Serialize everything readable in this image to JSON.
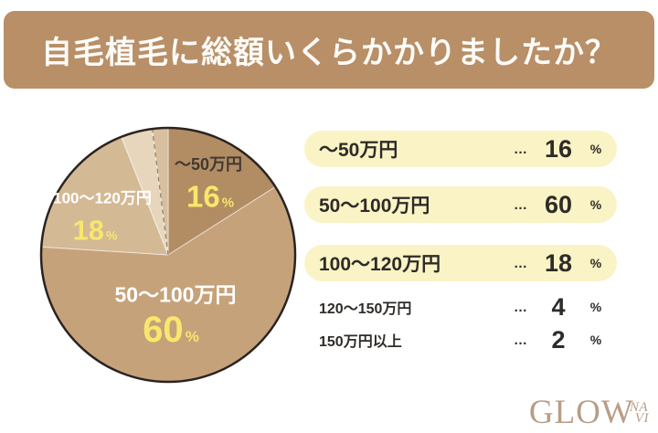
{
  "header": {
    "title": "自毛植毛に総額いくらかかりましたか？"
  },
  "chart_data": {
    "type": "pie",
    "title": "自毛植毛に総額いくらかかりましたか？",
    "categories": [
      "～50万円",
      "50～100万円",
      "100～120万円",
      "120～150万円",
      "150万円以上"
    ],
    "values": [
      16,
      60,
      18,
      4,
      2
    ],
    "unit": "%",
    "colors": [
      "#b28c63",
      "#c6a27b",
      "#d4b995",
      "#e7d6bb",
      "#d7bf9f"
    ],
    "outline_color": "#2a2321",
    "separator_color": "rgba(255,255,255,0.55)",
    "dashed_boundary_after_index": 3,
    "dashed_color": "#8d7f6c",
    "start_angle_deg": 0,
    "direction": "clockwise",
    "legend_position": "right",
    "labels_on_pie": [
      "～50万円",
      "50～100万円",
      "100～120万円"
    ]
  },
  "pie_labels": {
    "slice16": {
      "label": "～50万円",
      "value": "16",
      "unit": "%"
    },
    "slice18": {
      "label": "100～120万円",
      "value": "18",
      "unit": "%"
    },
    "slice60": {
      "label": "50～100万円",
      "value": "60",
      "unit": "%"
    }
  },
  "legend": {
    "dots": "…",
    "rows": [
      {
        "label": "～50万円",
        "value": "16",
        "unit": "%",
        "highlighted": true
      },
      {
        "label": "50～100万円",
        "value": "60",
        "unit": "%",
        "highlighted": true
      },
      {
        "label": "100～120万円",
        "value": "18",
        "unit": "%",
        "highlighted": true
      },
      {
        "label": "120～150万円",
        "value": "4",
        "unit": "%",
        "highlighted": false
      },
      {
        "label": "150万円以上",
        "value": "2",
        "unit": "%",
        "highlighted": false
      }
    ]
  },
  "logo": {
    "glow": "GLOW",
    "na": "NA",
    "vi": "VI"
  },
  "colors": {
    "banner_bg": "#b88f67",
    "banner_text": "#fdfbf8",
    "pill_bg": "#faf3c5",
    "value_yellow": "#f8e76d",
    "text_dark": "#2e2b28",
    "logo": "#b79e86"
  }
}
